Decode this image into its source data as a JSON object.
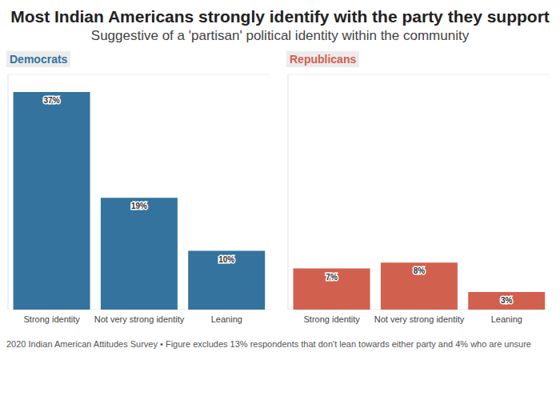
{
  "title": "Most Indian Americans strongly identify with the party they support",
  "subtitle": "Suggestive of a 'partisan' political identity within the community",
  "note": "2020 Indian American Attitudes Survey • Figure excludes 13% respondents that don't lean towards either party and 4% who are unsure",
  "chart_data": [
    {
      "type": "bar",
      "title": "Democrats",
      "categories": [
        "Strong identity",
        "Not very strong identity",
        "Leaning"
      ],
      "values": [
        37,
        19,
        10
      ],
      "value_labels": [
        "37%",
        "19%",
        "10%"
      ],
      "color": "#33739e",
      "ylim": [
        0,
        40
      ],
      "yticks": [
        0,
        5,
        10,
        15,
        20,
        25,
        30,
        35,
        40
      ],
      "grid": true,
      "data_labels": true,
      "tick_labels": "x"
    },
    {
      "type": "bar",
      "title": "Republicans",
      "categories": [
        "Strong identity",
        "Not very strong identity",
        "Leaning"
      ],
      "values": [
        7,
        8,
        3
      ],
      "value_labels": [
        "7%",
        "8%",
        "3%"
      ],
      "color": "#d2604f",
      "ylim": [
        0,
        40
      ],
      "yticks": [
        0,
        5,
        10,
        15,
        20,
        25,
        30,
        35,
        40
      ],
      "grid": true,
      "data_labels": true,
      "tick_labels": "x"
    }
  ]
}
